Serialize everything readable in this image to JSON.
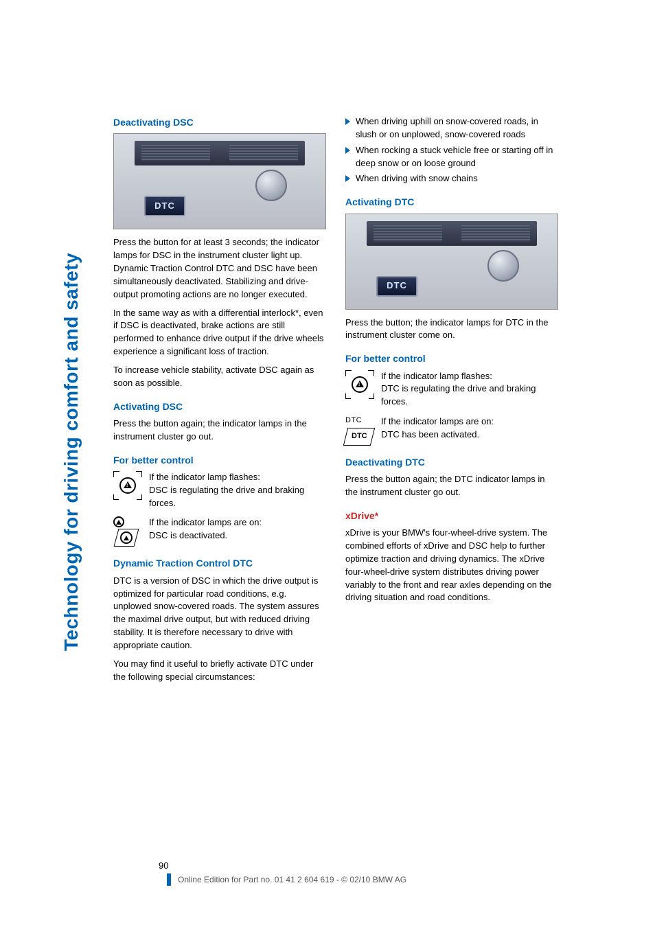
{
  "page": {
    "number": "90",
    "side_tab": "Technology for driving comfort and safety",
    "footer_line": "Online Edition for Part no. 01 41 2 604 619 - © 02/10 BMW AG"
  },
  "colors": {
    "accent_blue": "#0066b3",
    "accent_red": "#c62828",
    "body_text": "#000000",
    "footer_text": "#555555",
    "page_bg": "#ffffff",
    "dash_button_bg": "#18254a",
    "dash_button_text": "#d4e4ff"
  },
  "left_col": {
    "h1": "Deactivating DSC",
    "dash_label": "DTC",
    "p1": "Press the button for at least 3 seconds; the indicator lamps for DSC in the instrument cluster light up. Dynamic Traction Control DTC and DSC have been simultaneously deactivated. Stabilizing and drive-output promoting actions are no longer executed.",
    "p2": "In the same way as with a differential interlock*, even if DSC is deactivated, brake actions are still performed to enhance drive output if the drive wheels experience a significant loss of traction.",
    "p3": "To increase vehicle stability, activate DSC again as soon as possible.",
    "h2": "Activating DSC",
    "p4": "Press the button again; the indicator lamps in the instrument cluster go out.",
    "h3": "For better control",
    "fbc1": "If the indicator lamp flashes:\nDSC is regulating the drive and braking forces.",
    "fbc2": "If the indicator lamps are on:\nDSC is deactivated.",
    "h4": "Dynamic Traction Control DTC",
    "p5": "DTC is a version of DSC in which the drive output is optimized for particular road conditions, e.g. unplowed snow-covered roads. The system assures the maximal drive output, but with reduced driving stability. It is therefore necessary to drive with appropriate caution.",
    "p6": "You may find it useful to briefly activate DTC under the following special circumstances:"
  },
  "right_col": {
    "bullets": [
      "When driving uphill on snow-covered roads, in slush or on unplowed, snow-covered roads",
      "When rocking a stuck vehicle free or starting off in deep snow or on loose ground",
      "When driving with snow chains"
    ],
    "h1": "Activating DTC",
    "dash_label": "DTC",
    "p1": "Press the button; the indicator lamps for DTC in the instrument cluster come on.",
    "h2": "For better control",
    "fbc1": "If the indicator lamp flashes:\nDTC is regulating the drive and braking forces.",
    "dtc_small": "DTC",
    "dtc_box": "DTC",
    "fbc2": "If the indicator lamps are on:\nDTC has been activated.",
    "h3": "Deactivating DTC",
    "p2": "Press the button again; the DTC indicator lamps in the instrument cluster go out.",
    "h4": "xDrive*",
    "p3": "xDrive is your BMW's four-wheel-drive system. The combined efforts of xDrive and DSC help to further optimize traction and driving dynamics. The xDrive four-wheel-drive system distributes driving power variably to the front and rear axles depending on the driving situation and road conditions."
  }
}
